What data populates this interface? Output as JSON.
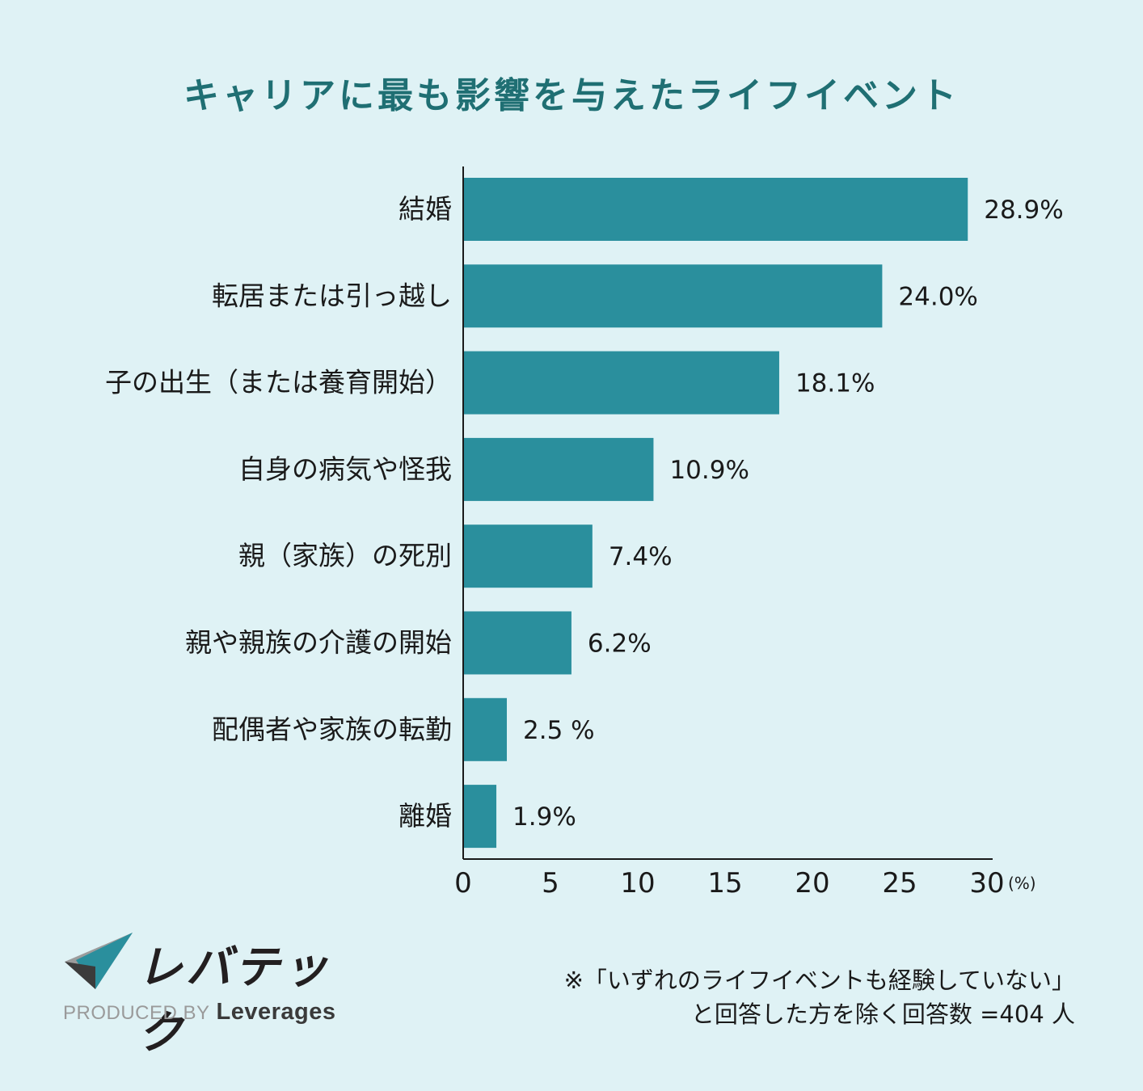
{
  "chart_data": {
    "type": "bar",
    "orientation": "horizontal",
    "title": "キャリアに最も影響を与えたライフイベント",
    "categories": [
      "結婚",
      "転居または引っ越し",
      "子の出生（または養育開始）",
      "自身の病気や怪我",
      "親（家族）の死別",
      "親や親族の介護の開始",
      "配偶者や家族の転勤",
      "離婚"
    ],
    "values": [
      28.9,
      24.0,
      18.1,
      10.9,
      7.4,
      6.2,
      2.5,
      1.9
    ],
    "value_labels": [
      "28.9%",
      "24.0%",
      "18.1%",
      "10.9%",
      "7.4%",
      "6.2%",
      "2.5 %",
      "1.9%"
    ],
    "xlim": [
      0,
      30
    ],
    "xticks": [
      0,
      5,
      10,
      15,
      20,
      25,
      30
    ],
    "xunit": "(%)",
    "grid": false,
    "colors": {
      "bar": "#2a8f9d",
      "title": "#1f6f73",
      "axis": "#1a1a1a"
    }
  },
  "logo": {
    "wordmark": "レバテック",
    "produced_by": "PRODUCED BY",
    "brand": "Leverages"
  },
  "footnote": {
    "line1": "※「いずれのライフイベントも経験していない」",
    "line2": "と回答した方を除く回答数 =404 人"
  }
}
